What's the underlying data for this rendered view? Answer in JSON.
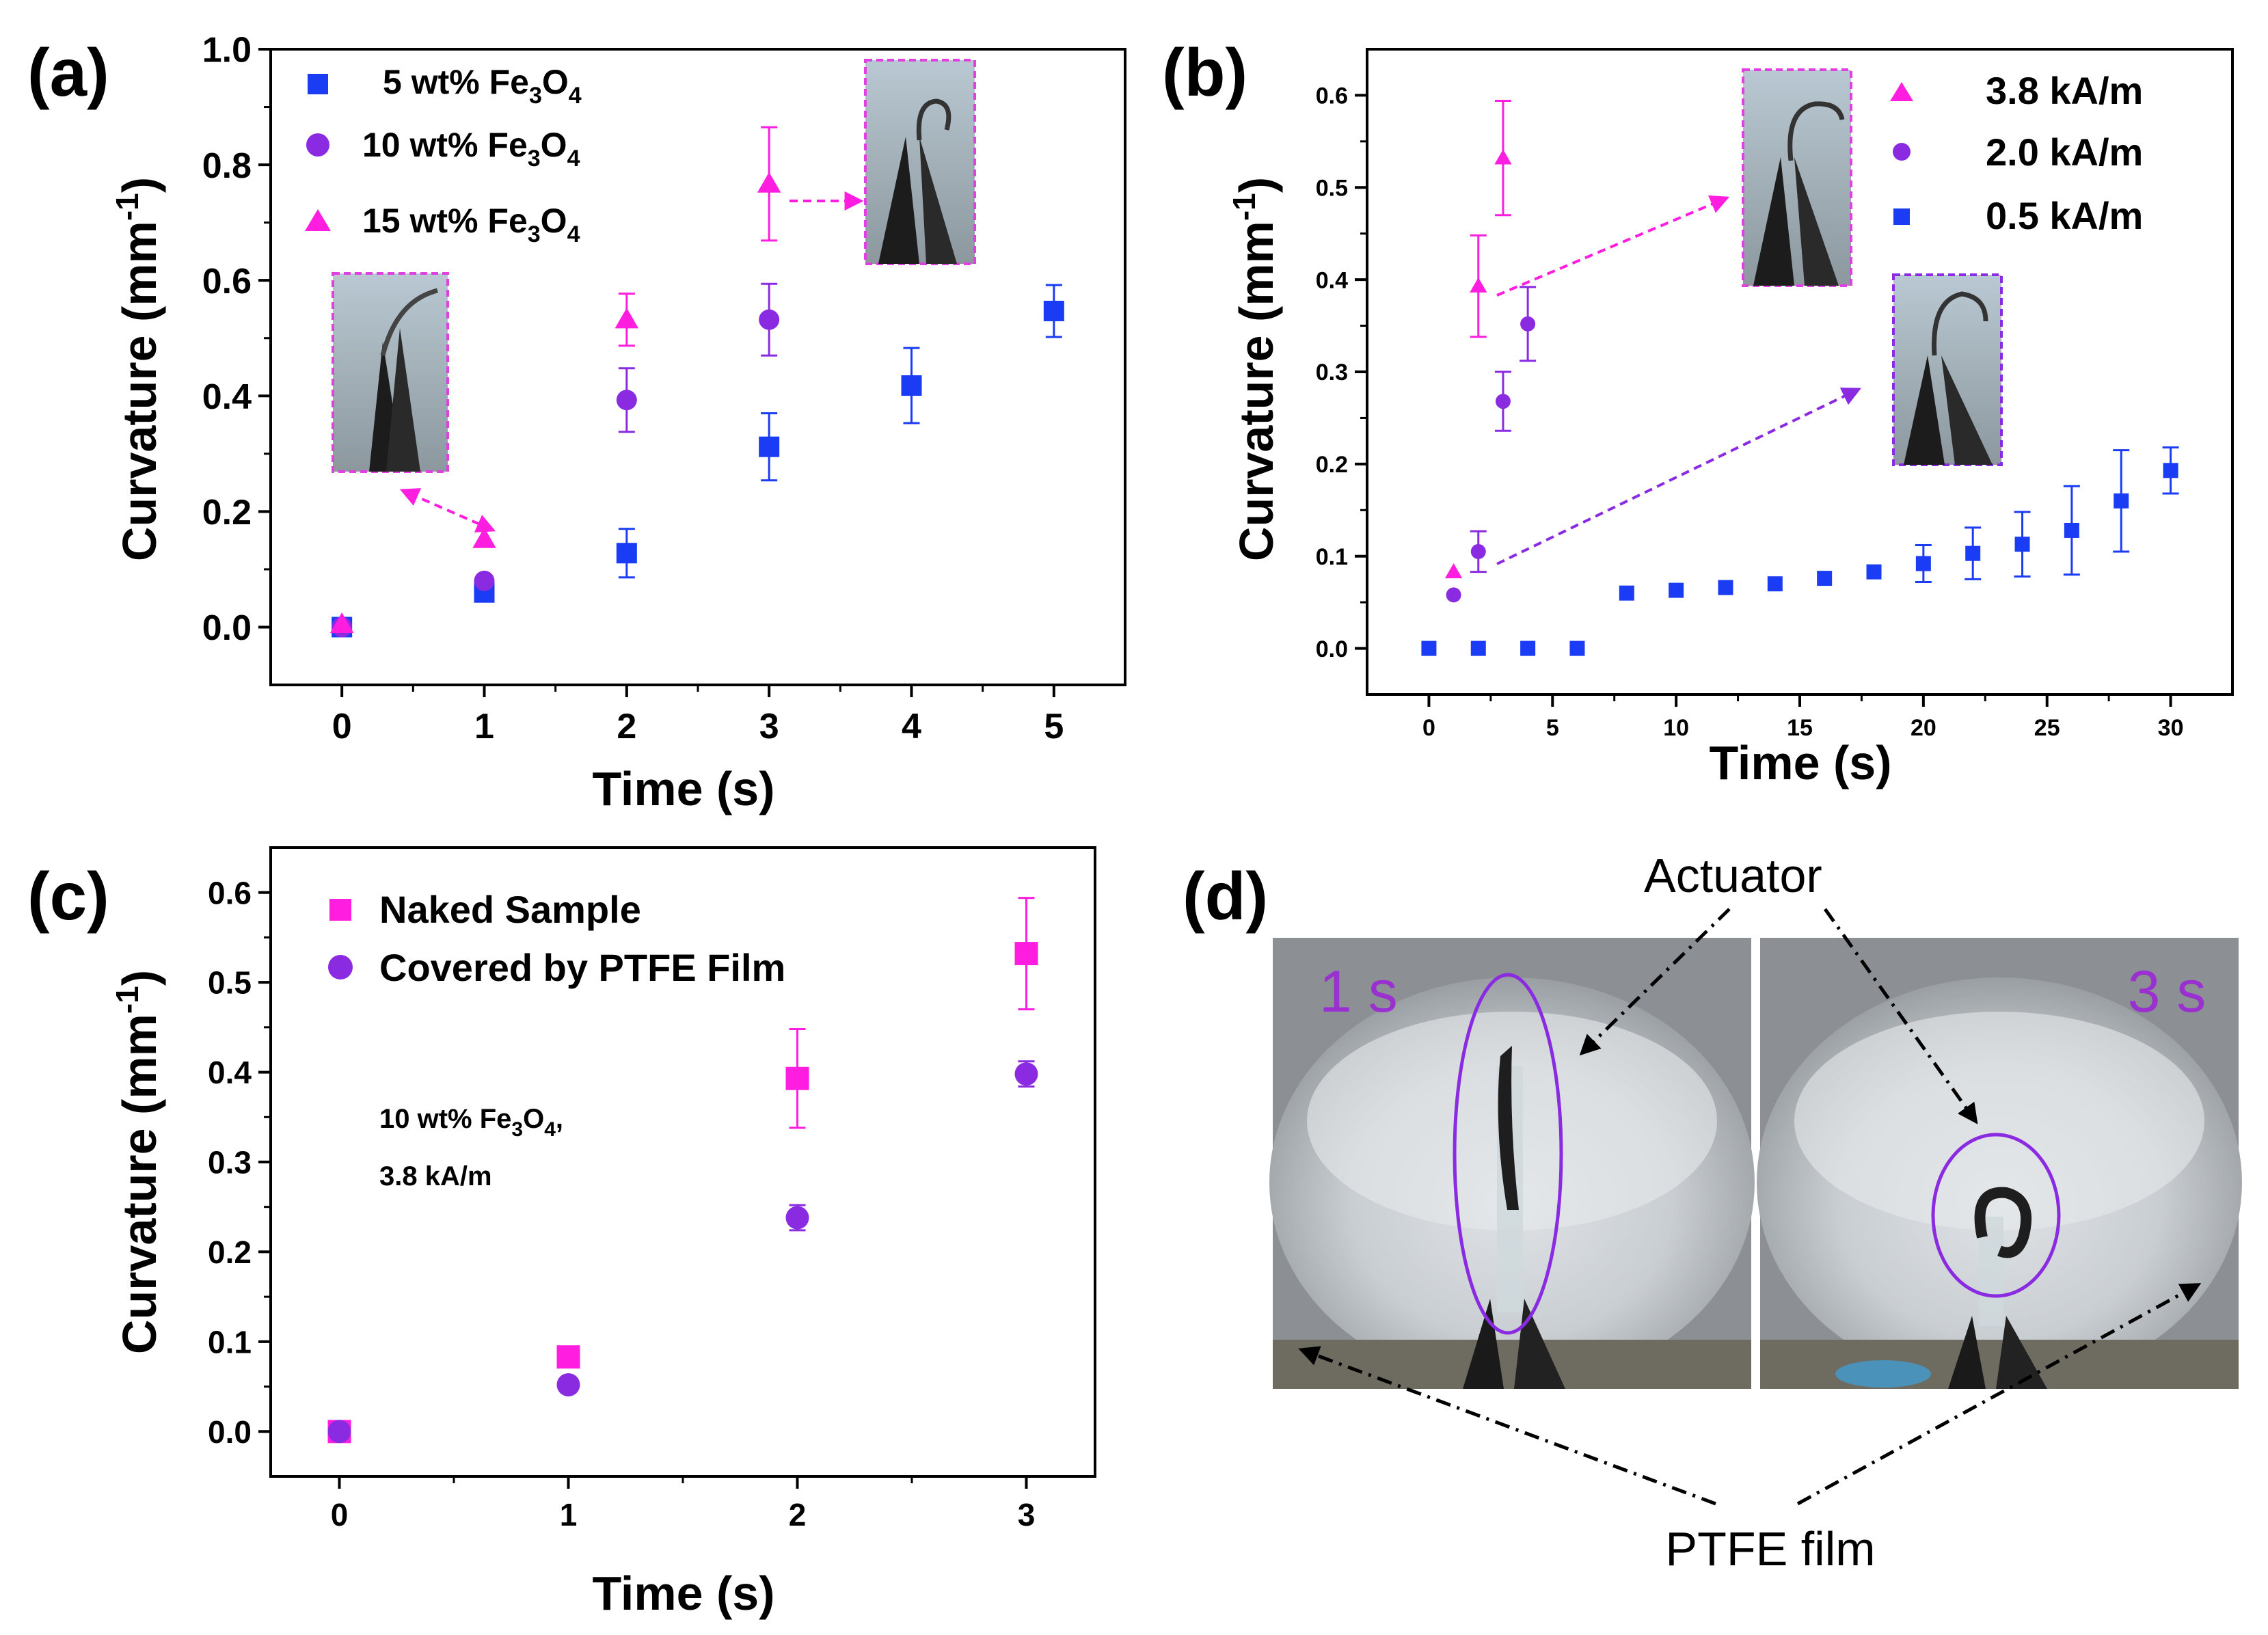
{
  "colors": {
    "blue": "#1a3cf5",
    "purple": "#8a2be2",
    "magenta": "#ff1ee0",
    "axis": "#000000"
  },
  "chart_data": [
    {
      "panel": "(a)",
      "type": "scatter",
      "xlabel": "Time (s)",
      "ylabel": "Curvature (mm",
      "ylabel_sup": "-1",
      "ylabel_close": ")",
      "xlim": [
        -0.5,
        5.5
      ],
      "ylim": [
        -0.1,
        1.0
      ],
      "xticks": [
        "0",
        "1",
        "2",
        "3",
        "4",
        "5"
      ],
      "yticks": [
        "0.0",
        "0.2",
        "0.4",
        "0.6",
        "0.8",
        "1.0"
      ],
      "legend_position": "top-left",
      "series": [
        {
          "name": "5 wt% Fe3O4",
          "legend_main": "5 wt% Fe",
          "legend_sub1": "3",
          "legend_mid": "O",
          "legend_sub2": "4",
          "marker": "square",
          "color": "blue",
          "x": [
            0,
            1,
            2,
            3,
            4,
            5
          ],
          "y": [
            0.0,
            0.06,
            0.128,
            0.312,
            0.418,
            0.547
          ],
          "err": [
            0.0,
            0.0,
            0.042,
            0.058,
            0.065,
            0.045
          ]
        },
        {
          "name": "10 wt% Fe3O4",
          "legend_main": "10 wt% Fe",
          "legend_sub1": "3",
          "legend_mid": "O",
          "legend_sub2": "4",
          "marker": "circle",
          "color": "purple",
          "x": [
            0,
            1,
            2,
            3
          ],
          "y": [
            0.0,
            0.08,
            0.393,
            0.532
          ],
          "err": [
            0.0,
            0.0,
            0.055,
            0.062
          ]
        },
        {
          "name": "15 wt% Fe3O4",
          "legend_main": "15 wt% Fe",
          "legend_sub1": "3",
          "legend_mid": "O",
          "legend_sub2": "4",
          "marker": "triangle",
          "color": "magenta",
          "x": [
            0,
            1,
            2,
            3
          ],
          "y": [
            0.005,
            0.152,
            0.532,
            0.767
          ],
          "err": [
            0.0,
            0.0,
            0.045,
            0.098
          ]
        }
      ]
    },
    {
      "panel": "(b)",
      "type": "scatter",
      "xlabel": "Time (s)",
      "ylabel": "Curvature (mm",
      "ylabel_sup": "-1",
      "ylabel_close": ")",
      "xlim": [
        -2.5,
        32.5
      ],
      "ylim": [
        -0.05,
        0.65
      ],
      "xticks": [
        "0",
        "5",
        "10",
        "15",
        "20",
        "25",
        "30"
      ],
      "yticks": [
        "0.0",
        "0.1",
        "0.2",
        "0.3",
        "0.4",
        "0.5",
        "0.6"
      ],
      "legend_position": "top-right",
      "series": [
        {
          "name": "3.8 kA/m",
          "marker": "triangle",
          "color": "magenta",
          "x": [
            1,
            2,
            3
          ],
          "y": [
            0.083,
            0.393,
            0.532
          ],
          "err": [
            0.0,
            0.055,
            0.062
          ]
        },
        {
          "name": "2.0 kA/m",
          "marker": "circle",
          "color": "purple",
          "x": [
            1,
            2,
            3,
            4
          ],
          "y": [
            0.058,
            0.105,
            0.268,
            0.352
          ],
          "err": [
            0.0,
            0.022,
            0.032,
            0.04
          ]
        },
        {
          "name": "0.5 kA/m",
          "marker": "square",
          "color": "blue",
          "x": [
            0,
            2,
            4,
            6,
            8,
            10,
            12,
            14,
            16,
            18,
            20,
            22,
            24,
            26,
            28,
            30
          ],
          "y": [
            0.0,
            0.0,
            0.0,
            0.0,
            0.06,
            0.063,
            0.066,
            0.07,
            0.076,
            0.083,
            0.092,
            0.103,
            0.113,
            0.128,
            0.16,
            0.193
          ],
          "err": [
            0,
            0,
            0,
            0,
            0,
            0,
            0,
            0,
            0,
            0,
            0.02,
            0.028,
            0.035,
            0.048,
            0.055,
            0.025
          ]
        }
      ]
    },
    {
      "panel": "(c)",
      "type": "scatter",
      "xlabel": "Time (s)",
      "ylabel": "Curvature (mm",
      "ylabel_sup": "-1",
      "ylabel_close": ")",
      "xlim": [
        -0.3,
        3.3
      ],
      "ylim": [
        -0.05,
        0.65
      ],
      "xticks": [
        "0",
        "1",
        "2",
        "3"
      ],
      "yticks": [
        "0.0",
        "0.1",
        "0.2",
        "0.3",
        "0.4",
        "0.5",
        "0.6"
      ],
      "legend_position": "top-left",
      "annotation": {
        "line1_main": "10 wt% Fe",
        "line1_sub1": "3",
        "line1_mid": "O",
        "line1_sub2": "4",
        "line1_end": ",",
        "line2": "3.8 kA/m"
      },
      "series": [
        {
          "name": "Naked Sample",
          "marker": "square",
          "color": "magenta",
          "x": [
            0,
            1,
            2,
            3
          ],
          "y": [
            0.0,
            0.083,
            0.393,
            0.532
          ],
          "err": [
            0.0,
            0.0,
            0.055,
            0.062
          ]
        },
        {
          "name": "Covered by PTFE Film",
          "marker": "circle",
          "color": "purple",
          "x": [
            0,
            1,
            2,
            3
          ],
          "y": [
            0.0,
            0.052,
            0.238,
            0.398
          ],
          "err": [
            0.0,
            0.0,
            0.014,
            0.014
          ]
        }
      ]
    }
  ],
  "panel_d": {
    "label": "(d)",
    "actuator_label": "Actuator",
    "ptfe_label": "PTFE film",
    "photo_left_time": "1 s",
    "photo_right_time": "3 s"
  }
}
